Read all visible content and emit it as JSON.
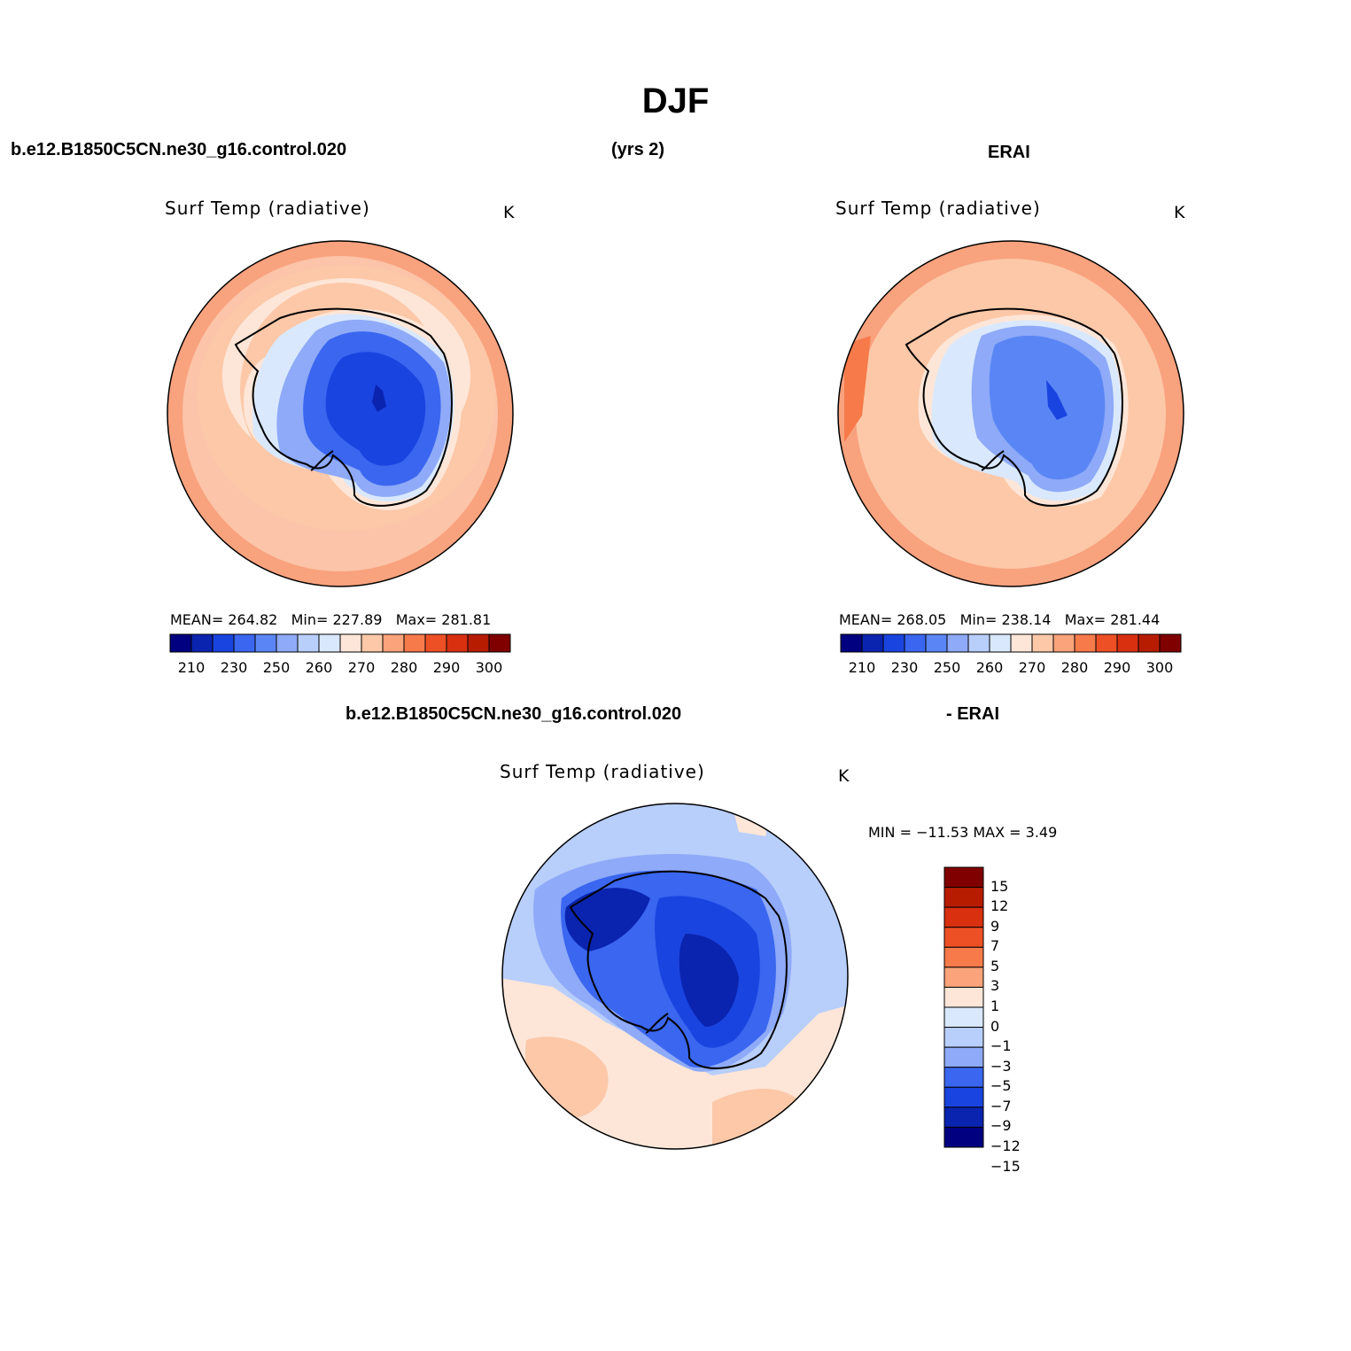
{
  "title": "DJF",
  "header": {
    "case_name": "b.e12.B1850C5CN.ne30_g16.control.020",
    "years": "(yrs 2)",
    "obs_name": "ERAI",
    "diff_case": "b.e12.B1850C5CN.ne30_g16.control.020",
    "diff_obs": "- ERAI"
  },
  "panels": [
    {
      "id": "model",
      "title": "Surf Temp (radiative)",
      "units": "K",
      "stats": {
        "mean_label": "MEAN=",
        "mean": "264.82",
        "min_label": "Min=",
        "min": "227.89",
        "max_label": "Max=",
        "max": "281.81"
      }
    },
    {
      "id": "obs",
      "title": "Surf Temp (radiative)",
      "units": "K",
      "stats": {
        "mean_label": "MEAN=",
        "mean": "268.05",
        "min_label": "Min=",
        "min": "238.14",
        "max_label": "Max=",
        "max": "281.44"
      }
    },
    {
      "id": "diff",
      "title": "Surf Temp (radiative)",
      "units": "K",
      "minmax_text": "MIN = −11.53 MAX =    3.49"
    }
  ],
  "colorbar_abs": {
    "colors": [
      "#000080",
      "#0a24b0",
      "#1a44e0",
      "#3a66f0",
      "#5a86f5",
      "#8eaaf8",
      "#b8cefb",
      "#d9e8fd",
      "#fde6d8",
      "#fcc8a8",
      "#fba37a",
      "#f77a4a",
      "#ee5025",
      "#d93010",
      "#b81c00",
      "#800000"
    ],
    "labels": [
      "210",
      "230",
      "250",
      "260",
      "270",
      "280",
      "290",
      "300"
    ]
  },
  "colorbar_diff": {
    "colors": [
      "#800000",
      "#b81c00",
      "#d93010",
      "#ee5025",
      "#f77a4a",
      "#fba37a",
      "#fde6d8",
      "#d9e8fd",
      "#b8cefb",
      "#8eaaf8",
      "#3a66f0",
      "#1a44e0",
      "#0a24b0",
      "#000080"
    ],
    "labels": [
      "15",
      "12",
      "9",
      "7",
      "5",
      "3",
      "1",
      "0",
      "−1",
      "−3",
      "−5",
      "−7",
      "−9",
      "−12",
      "−15"
    ]
  }
}
